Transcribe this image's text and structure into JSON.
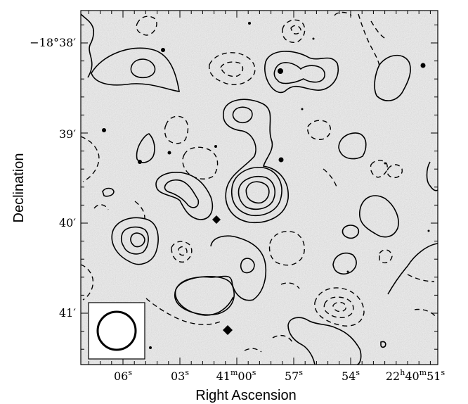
{
  "chart_data": {
    "type": "contour",
    "xlabel": "Right Ascension",
    "ylabel": "Declination",
    "x_ticks": [
      {
        "main": "06",
        "sup": "s"
      },
      {
        "main": "03",
        "sup": "s"
      },
      {
        "main": "41",
        "sup": "m",
        "main2": "00",
        "sup2": "s"
      },
      {
        "main": "57",
        "sup": "s"
      },
      {
        "main": "54",
        "sup": "s"
      },
      {
        "main": "22",
        "sup": "h",
        "main2": "40",
        "sup2": "m",
        "main3": "51",
        "sup3": "s"
      }
    ],
    "y_ticks": [
      "−18°38′",
      "39′",
      "40′",
      "41′"
    ],
    "beam": "circle",
    "contour_styles": {
      "positive": "solid",
      "negative": "dashed"
    },
    "colors": {
      "background": "#c8c8c8",
      "contour": "#000000"
    }
  }
}
